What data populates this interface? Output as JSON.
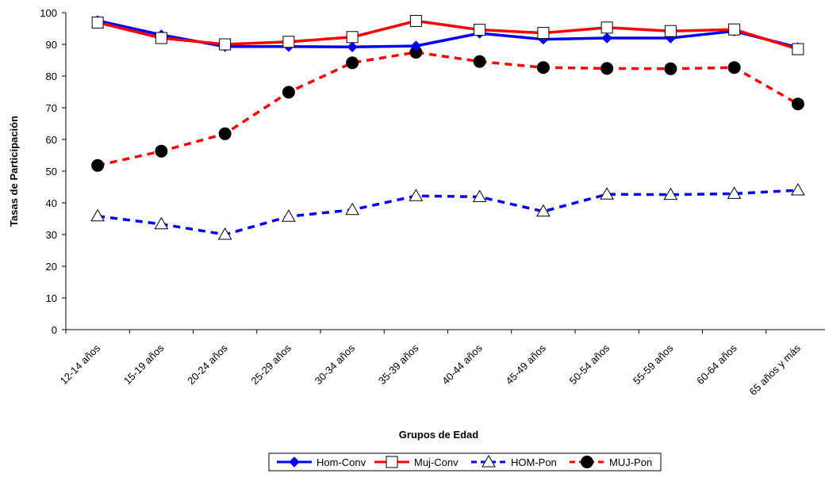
{
  "chart_data": {
    "type": "line",
    "title": "",
    "xlabel": "Grupos de Edad",
    "ylabel": "Tasas de Participación",
    "ylim": [
      0,
      100
    ],
    "yticks": [
      0,
      10,
      20,
      30,
      40,
      50,
      60,
      70,
      80,
      90,
      100
    ],
    "grid": false,
    "legend_position": "bottom",
    "categories": [
      "12-14 años",
      "15-19 años",
      "20-24 años",
      "25-29 años",
      "30-34 años",
      "35-39 años",
      "40-44 años",
      "45-49 años",
      "50-54 años",
      "55-59 años",
      "60-64 años",
      "65 años y más"
    ],
    "series": [
      {
        "name": "Hom-Conv",
        "color": "#0000ff",
        "line": "solid",
        "marker": "diamond-filled",
        "values": [
          97.5,
          93.0,
          89.3,
          89.3,
          89.2,
          89.5,
          93.5,
          91.6,
          92.0,
          92.0,
          94.2,
          89.0
        ]
      },
      {
        "name": "Muj-Conv",
        "color": "#ff0000",
        "line": "solid",
        "marker": "square-open",
        "values": [
          96.9,
          92.0,
          90.0,
          90.8,
          92.3,
          97.4,
          94.6,
          93.6,
          95.3,
          94.2,
          94.7,
          88.5
        ]
      },
      {
        "name": "HOM-Pon",
        "color": "#0000ff",
        "line": "dashed",
        "marker": "triangle-open",
        "values": [
          35.8,
          33.3,
          30.0,
          35.7,
          37.8,
          42.2,
          41.9,
          37.3,
          42.7,
          42.6,
          42.9,
          44.0
        ]
      },
      {
        "name": "MUJ-Pon",
        "color": "#ff0000",
        "line": "dashed",
        "marker": "circle-filled",
        "values": [
          51.8,
          56.3,
          61.8,
          74.9,
          84.2,
          87.5,
          84.6,
          82.7,
          82.4,
          82.3,
          82.7,
          71.2
        ]
      }
    ]
  }
}
